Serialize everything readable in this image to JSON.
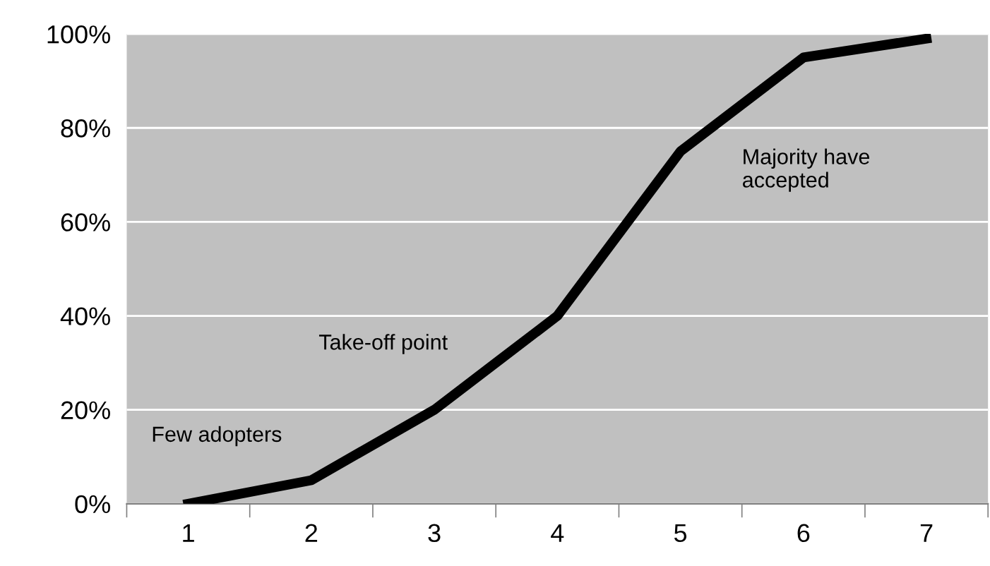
{
  "chart_data": {
    "type": "line",
    "categories": [
      "1",
      "2",
      "3",
      "4",
      "5",
      "6",
      "7"
    ],
    "series": [
      {
        "color": "#000000",
        "values": [
          0,
          5,
          20,
          40,
          75,
          95,
          99
        ]
      }
    ],
    "ylim": [
      0,
      100
    ],
    "yticks": [
      {
        "value": 0,
        "label": "0%"
      },
      {
        "value": 20,
        "label": "20%"
      },
      {
        "value": 40,
        "label": "40%"
      },
      {
        "value": 60,
        "label": "60%"
      },
      {
        "value": 80,
        "label": "80%"
      },
      {
        "value": 100,
        "label": "100%"
      }
    ],
    "grid": "y",
    "marker": "none",
    "line_style": "solid",
    "legend": false,
    "annotations": [
      "Few adopters",
      "Take-off point",
      "Majority have\naccepted"
    ]
  }
}
